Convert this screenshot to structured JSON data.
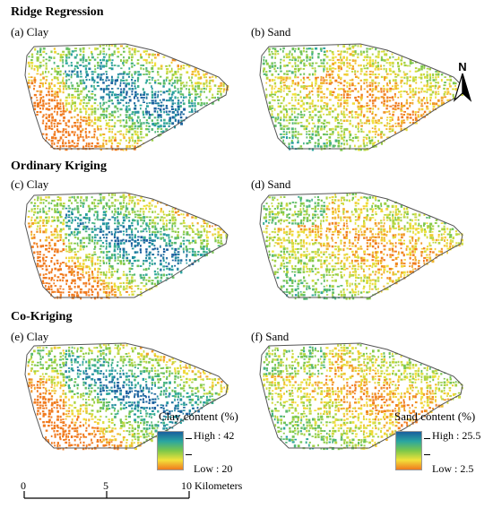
{
  "sections": {
    "ridge": "Ridge Regression",
    "ordinary": "Ordinary Kriging",
    "cokriging": "Co-Kriging"
  },
  "panels": {
    "a": "(a) Clay",
    "b": "(b) Sand",
    "c": "(c) Clay",
    "d": "(d) Sand",
    "e": "(e) Clay",
    "f": "(f) Sand"
  },
  "north_arrow": {
    "label": "N"
  },
  "legends": {
    "clay": {
      "title": "Clay content (%)",
      "high": "High : 42",
      "low": "Low : 20"
    },
    "sand": {
      "title": "Sand content (%)",
      "high": "High : 25.5",
      "low": "Low : 2.5"
    }
  },
  "scale_bar": {
    "ticks": [
      "0",
      "5",
      "10 Kilometers"
    ]
  },
  "colors": {
    "high": "#1a5f9e",
    "mid_high": "#2aa6a0",
    "mid": "#7cc84a",
    "mid_low": "#f2e23a",
    "low": "#f07a1e",
    "outline": "#555555"
  },
  "maps": [
    {
      "panel": "a",
      "variable": "clay",
      "method": "Ridge Regression"
    },
    {
      "panel": "b",
      "variable": "sand",
      "method": "Ridge Regression"
    },
    {
      "panel": "c",
      "variable": "clay",
      "method": "Ordinary Kriging"
    },
    {
      "panel": "d",
      "variable": "sand",
      "method": "Ordinary Kriging"
    },
    {
      "panel": "e",
      "variable": "clay",
      "method": "Co-Kriging"
    },
    {
      "panel": "f",
      "variable": "sand",
      "method": "Co-Kriging"
    }
  ]
}
